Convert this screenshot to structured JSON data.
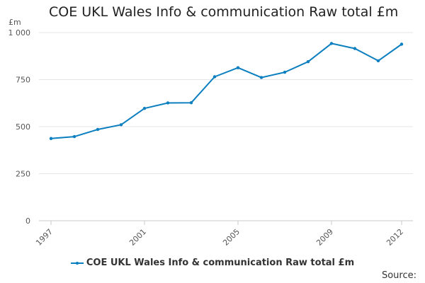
{
  "chart_data": {
    "type": "line",
    "title": "COE UKL Wales Info & communication Raw total £m",
    "ylabel": "£m",
    "xlabel": "",
    "ylim": [
      0,
      1000
    ],
    "y_ticks": [
      0,
      250,
      500,
      750,
      1000
    ],
    "y_tick_labels": [
      "0",
      "250",
      "500",
      "750",
      "1 000"
    ],
    "x_range": [
      1997,
      2012
    ],
    "x_tick_labels": [
      "1997",
      "2001",
      "2005",
      "2009",
      "2012"
    ],
    "x_tick_values": [
      1997,
      2001,
      2005,
      2009,
      2012
    ],
    "grid": true,
    "legend_position": "bottom",
    "series": [
      {
        "name": "COE UKL Wales Info & communication Raw total £m",
        "color": "#0b7fbf",
        "x": [
          1997,
          1998,
          1999,
          2000,
          2001,
          2002,
          2003,
          2004,
          2005,
          2006,
          2007,
          2008,
          2009,
          2010,
          2011,
          2012
        ],
        "values": [
          437,
          447,
          485,
          510,
          597,
          626,
          627,
          765,
          813,
          761,
          789,
          845,
          942,
          915,
          850,
          938
        ]
      }
    ]
  },
  "footer": {
    "source_label": "Source:"
  }
}
